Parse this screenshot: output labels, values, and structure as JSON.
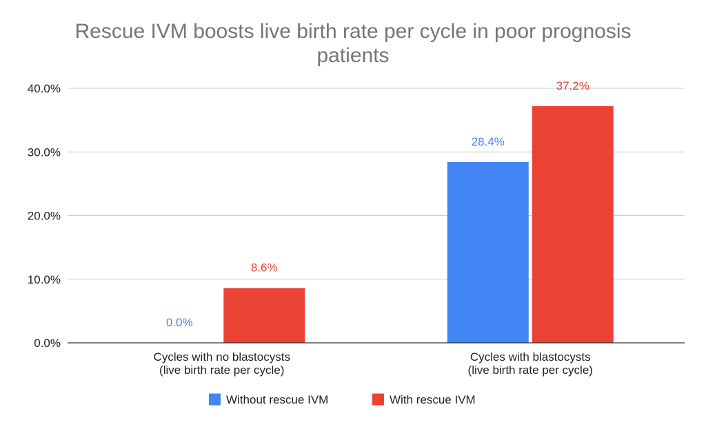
{
  "chart_data": {
    "type": "bar",
    "title_lines": [
      "Rescue IVM boosts live birth rate per cycle in poor prognosis",
      "patients"
    ],
    "categories": [
      [
        "Cycles with no blastocysts",
        "(live birth rate per cycle)"
      ],
      [
        "Cycles with blastocysts",
        "(live birth rate per cycle)"
      ]
    ],
    "series": [
      {
        "name": "Without rescue IVM",
        "color": "#4285f4",
        "values": [
          0.0,
          28.4
        ],
        "labels": [
          "0.0%",
          "28.4%"
        ]
      },
      {
        "name": "With rescue IVM",
        "color": "#ea4335",
        "values": [
          8.6,
          37.2
        ],
        "labels": [
          "8.6%",
          "37.2%"
        ]
      }
    ],
    "y_ticks": [
      0,
      10,
      20,
      30,
      40
    ],
    "y_tick_labels": [
      "0.0%",
      "10.0%",
      "20.0%",
      "30.0%",
      "40.0%"
    ],
    "ylim": [
      0,
      40
    ],
    "xlabel": "",
    "ylabel": "",
    "grid": true,
    "legend_position": "bottom"
  }
}
